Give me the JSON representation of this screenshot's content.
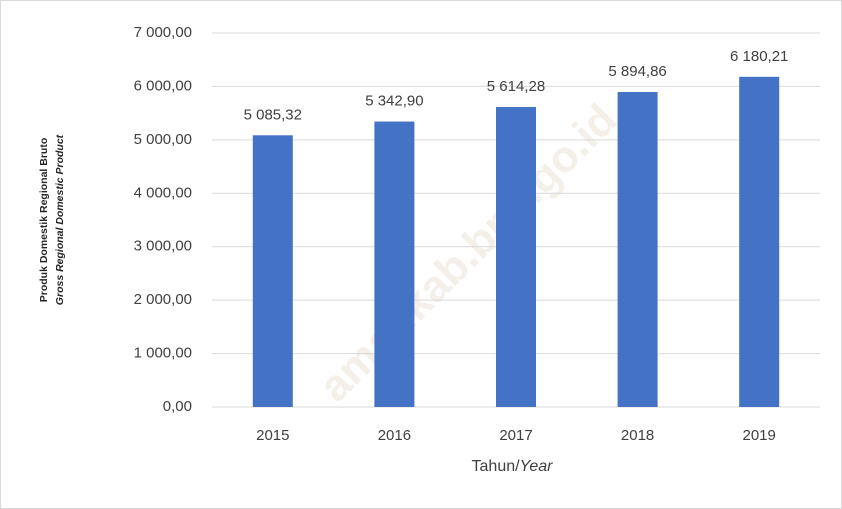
{
  "chart_data": {
    "type": "bar",
    "y_label": [
      "Produk Domestik Regional Bruto",
      "Gross Regional Domestic Product"
    ],
    "x_label": {
      "main": "Tahun/",
      "italic": "Year"
    },
    "watermark": "amankab.bps.go.id",
    "categories": [
      "2015",
      "2016",
      "2017",
      "2018",
      "2019"
    ],
    "values": [
      5085.32,
      5342.9,
      5614.28,
      5894.86,
      6180.21
    ],
    "value_labels": [
      "5 085,32",
      "5 342,90",
      "5 614,28",
      "5 894,86",
      "6 180,21"
    ],
    "color": "#4472c4",
    "ylim": [
      0,
      7000
    ],
    "yticks": [
      {
        "value": 0,
        "label": "0,00"
      },
      {
        "value": 1000,
        "label": "1 000,00"
      },
      {
        "value": 2000,
        "label": "2 000,00"
      },
      {
        "value": 3000,
        "label": "3 000,00"
      },
      {
        "value": 4000,
        "label": "4 000,00"
      },
      {
        "value": 5000,
        "label": "5 000,00"
      },
      {
        "value": 6000,
        "label": "6 000,00"
      },
      {
        "value": 7000,
        "label": "7 000,00"
      }
    ],
    "grid": true
  }
}
